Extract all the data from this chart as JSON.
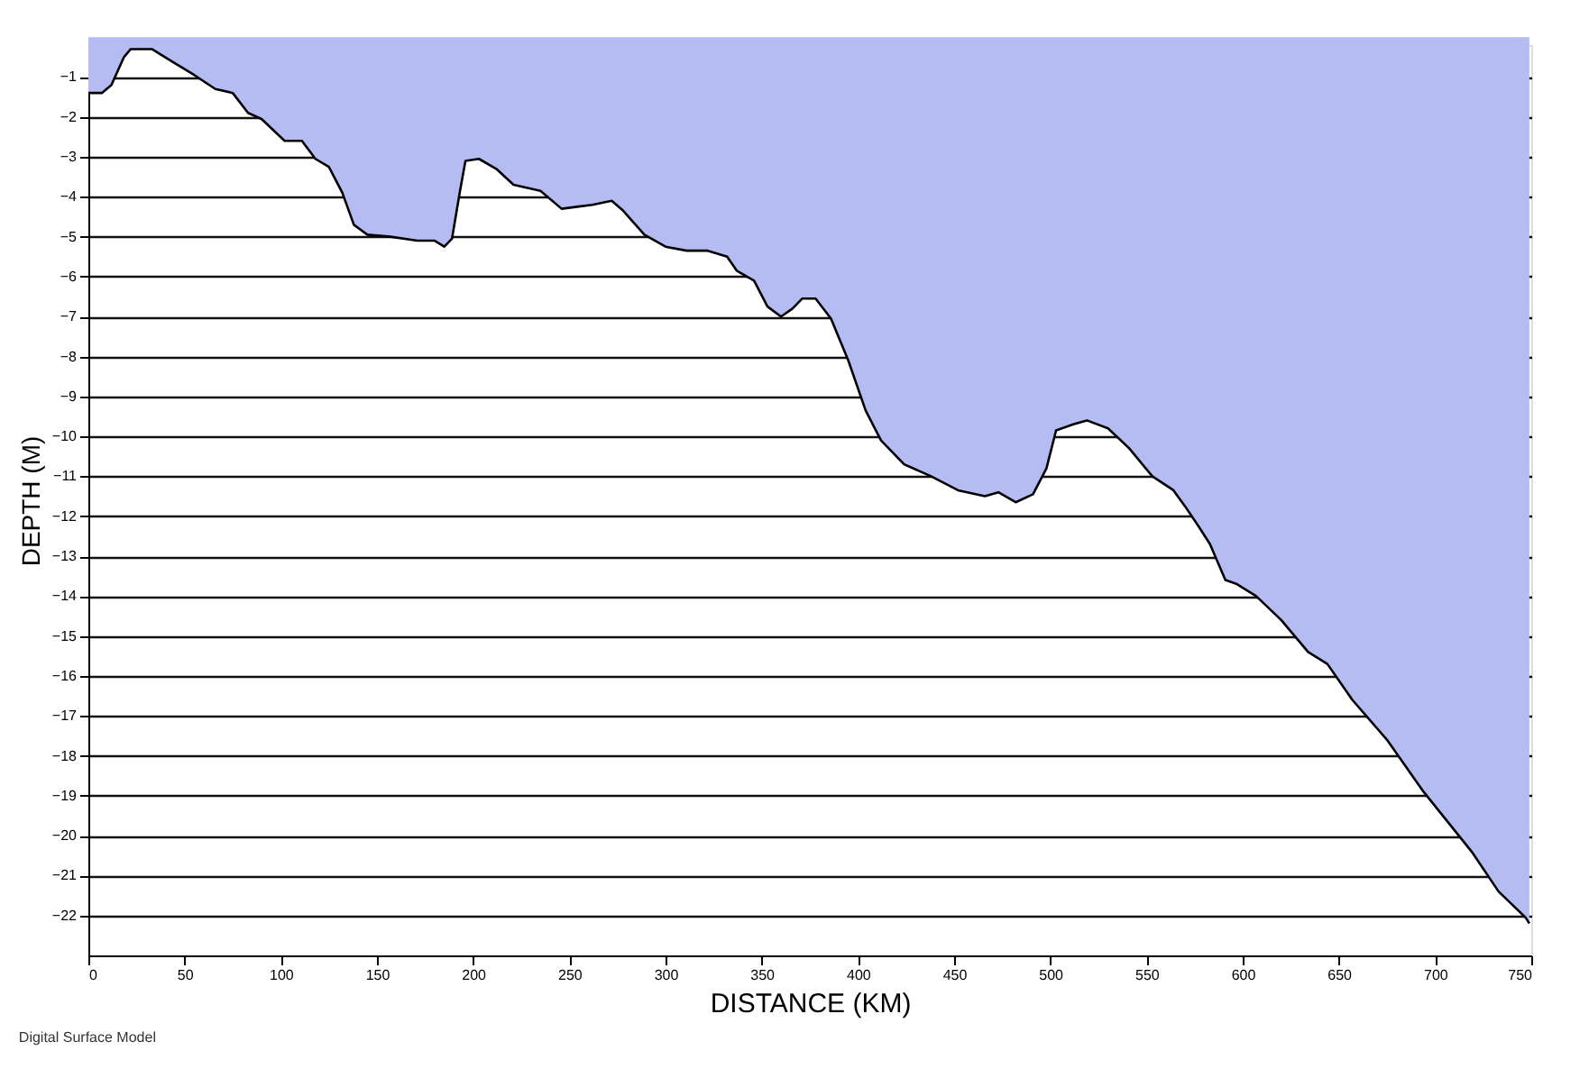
{
  "chart_data": {
    "type": "area",
    "xlabel": "DISTANCE (KM)",
    "ylabel": "DEPTH (M)",
    "annotations": [
      "Digital Surface Model"
    ],
    "x": [
      0,
      7,
      12,
      18.5,
      22,
      33,
      43,
      55,
      66,
      75,
      83,
      90,
      102,
      111,
      118,
      125,
      132,
      138,
      145,
      157,
      171,
      180,
      185,
      189,
      193,
      196,
      203,
      212,
      221,
      235,
      246,
      254,
      262,
      272,
      278,
      289,
      300,
      311,
      322,
      332,
      337,
      346,
      353,
      360,
      366,
      371,
      378,
      386,
      395,
      404,
      412,
      424,
      438,
      452,
      466,
      473,
      482,
      491,
      498,
      503,
      512,
      519,
      530,
      541,
      553,
      564,
      570,
      577,
      583,
      591,
      597,
      607,
      620,
      634,
      644,
      657,
      675,
      694,
      719,
      733,
      747,
      749
    ],
    "series": [
      {
        "color": "#b4bcf2",
        "values": [
          -1.4,
          -1.4,
          -1.2,
          -0.5,
          -0.3,
          -0.3,
          -0.6,
          -0.95,
          -1.3,
          -1.4,
          -1.9,
          -2.05,
          -2.6,
          -2.6,
          -3.05,
          -3.25,
          -3.9,
          -4.7,
          -4.95,
          -5.0,
          -5.1,
          -5.1,
          -5.25,
          -5.05,
          -3.9,
          -3.1,
          -3.05,
          -3.3,
          -3.7,
          -3.85,
          -4.3,
          -4.25,
          -4.2,
          -4.1,
          -4.35,
          -4.95,
          -5.25,
          -5.35,
          -5.35,
          -5.5,
          -5.85,
          -6.1,
          -6.75,
          -7.0,
          -6.8,
          -6.55,
          -6.55,
          -7.05,
          -8.1,
          -9.35,
          -10.1,
          -10.7,
          -11.0,
          -11.35,
          -11.5,
          -11.4,
          -11.65,
          -11.45,
          -10.8,
          -9.85,
          -9.7,
          -9.6,
          -9.8,
          -10.3,
          -11.0,
          -11.35,
          -11.75,
          -12.25,
          -12.7,
          -13.6,
          -13.7,
          -14.0,
          -14.6,
          -15.4,
          -15.7,
          -16.6,
          -17.6,
          -18.9,
          -20.4,
          -21.4,
          -22.05,
          -22.2
        ]
      }
    ],
    "xlim": [
      0,
      750
    ],
    "xticks": [
      0,
      50,
      100,
      150,
      200,
      250,
      300,
      350,
      400,
      450,
      500,
      550,
      600,
      650,
      700,
      750
    ],
    "ylim": [
      -23,
      -0.2
    ],
    "yticks": [
      -1,
      -2,
      -3,
      -4,
      -5,
      -6,
      -7,
      -8,
      -9,
      -10,
      -11,
      -12,
      -13,
      -14,
      -15,
      -16,
      -17,
      -18,
      -19,
      -20,
      -21,
      -22
    ],
    "grid": "y"
  }
}
